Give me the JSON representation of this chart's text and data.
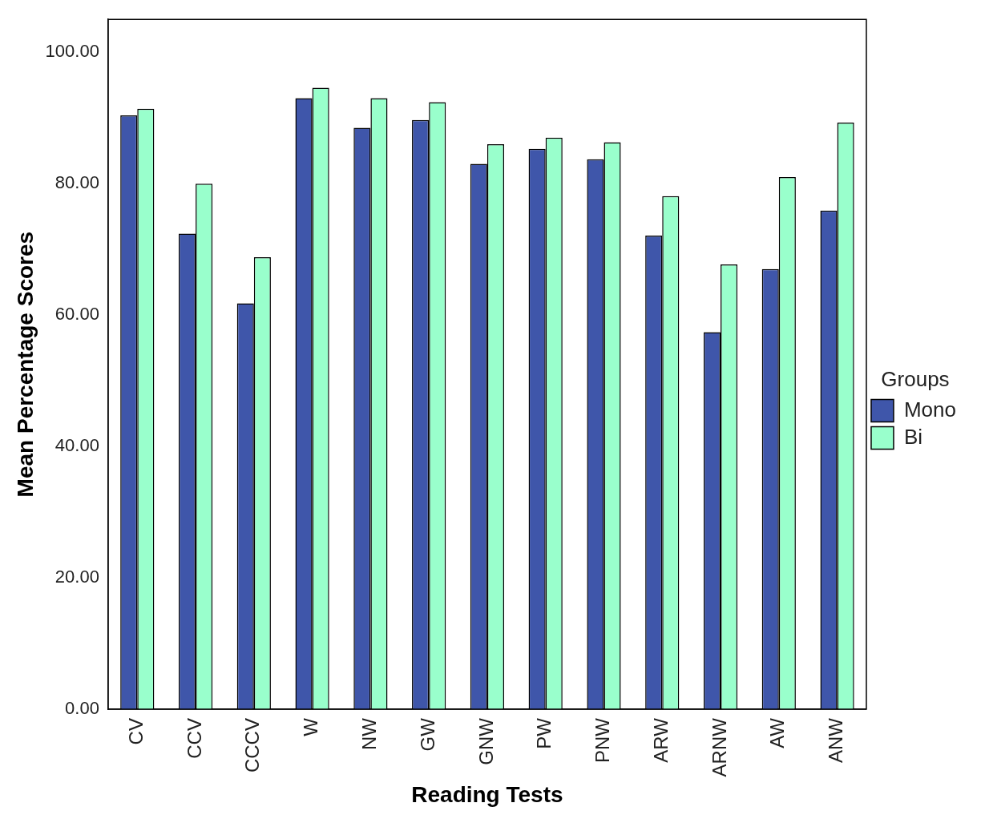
{
  "chart_data": {
    "type": "bar",
    "xlabel": "Reading Tests",
    "ylabel": "Mean Percentage Scores",
    "legend_title": "Groups",
    "categories": [
      "CV",
      "CCV",
      "CCCV",
      "W",
      "NW",
      "GW",
      "GNW",
      "PW",
      "PNW",
      "ARW",
      "ARNW",
      "AW",
      "ANW"
    ],
    "series": [
      {
        "name": "Mono",
        "color": "#3f56aa",
        "values": [
          90.4,
          72.4,
          61.8,
          93.0,
          88.5,
          89.7,
          83.0,
          85.3,
          83.7,
          72.1,
          57.4,
          67.0,
          75.9
        ]
      },
      {
        "name": "Bi",
        "color": "#99ffcc",
        "values": [
          91.4,
          80.0,
          68.8,
          94.6,
          93.0,
          92.4,
          86.0,
          87.0,
          86.3,
          78.1,
          67.7,
          81.0,
          89.3
        ]
      }
    ],
    "ylim": [
      0,
      105
    ],
    "yticks": [
      {
        "value": 0,
        "label": "0.00"
      },
      {
        "value": 20,
        "label": "20.00"
      },
      {
        "value": 40,
        "label": "40.00"
      },
      {
        "value": 60,
        "label": "60.00"
      },
      {
        "value": 80,
        "label": "80.00"
      },
      {
        "value": 100,
        "label": "100.00"
      }
    ],
    "grid": false,
    "legend": "right"
  }
}
